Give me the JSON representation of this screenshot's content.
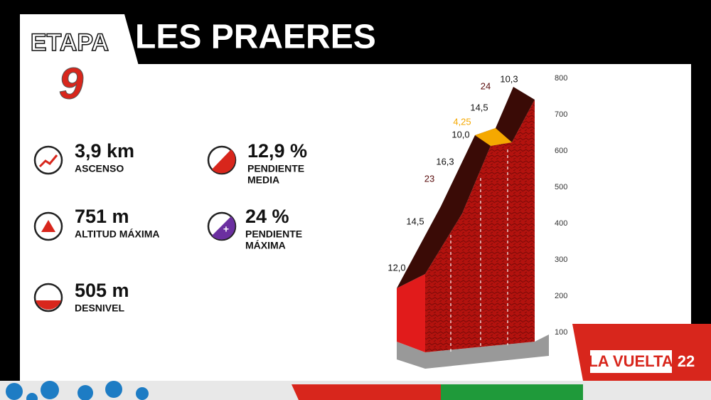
{
  "stage": {
    "label": "ETAPA",
    "number": "9"
  },
  "title": "LES PRAERES",
  "stats": [
    {
      "value": "3,9 km",
      "label": [
        "ASCENSO"
      ]
    },
    {
      "value": "12,9 %",
      "label": [
        "PENDIENTE",
        "MEDIA"
      ]
    },
    {
      "value": "751 m",
      "label": [
        "ALTITUD MÁXIMA"
      ]
    },
    {
      "value": "24 %",
      "label": [
        "PENDIENTE",
        "MÁXIMA"
      ]
    },
    {
      "value": "505 m",
      "label": [
        "DESNIVEL"
      ]
    }
  ],
  "profile": {
    "segments": [
      "12,0",
      "14,5",
      "23",
      "16,3",
      "10,0",
      "4,25",
      "14,5",
      "24",
      "10,3"
    ],
    "altitude_ticks": [
      "800",
      "700",
      "600",
      "500",
      "400",
      "300",
      "200",
      "100"
    ]
  },
  "logo": {
    "name": "LA VUELTA",
    "year": "22"
  }
}
